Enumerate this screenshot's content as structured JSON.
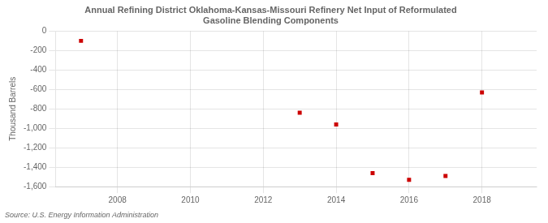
{
  "chart_data": {
    "type": "scatter",
    "title": "Annual Refining District Oklahoma-Kansas-Missouri Refinery Net Input of Reformulated\nGasoline Blending Components",
    "y_label": "Thousand Barrels",
    "annotations": [
      "Source: U.S. Energy Information Administration"
    ],
    "x": [
      2007,
      2013,
      2014,
      2015,
      2016,
      2017,
      2018
    ],
    "values": [
      -100,
      -840,
      -960,
      -1460,
      -1530,
      -1490,
      -630
    ],
    "color": "#cc0000",
    "marker": "square",
    "xlim": [
      2006.3,
      2019.5
    ],
    "xticks": [
      2008,
      2010,
      2012,
      2014,
      2016,
      2018
    ],
    "ylim": [
      -1600,
      0
    ],
    "yticks": [
      0,
      -200,
      -400,
      -600,
      -800,
      {
        "value": -1000,
        "label": "-1,000"
      },
      {
        "value": -1200,
        "label": "-1,200"
      },
      {
        "value": -1400,
        "label": "-1,400"
      },
      {
        "value": -1600,
        "label": "-1,600"
      }
    ],
    "grid": true
  }
}
